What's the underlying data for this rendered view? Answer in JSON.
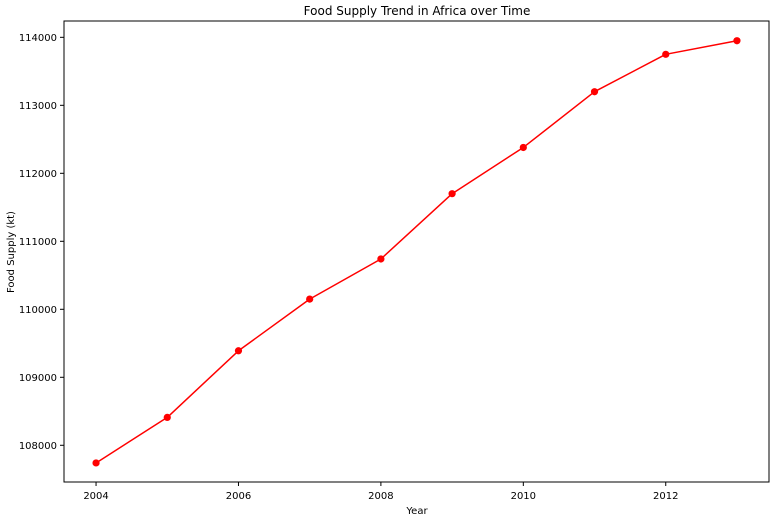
{
  "chart_data": {
    "type": "line",
    "title": "Food Supply Trend in Africa over Time",
    "xlabel": "Year",
    "ylabel": "Food Supply (kt)",
    "x": [
      2004,
      2005,
      2006,
      2007,
      2008,
      2009,
      2010,
      2011,
      2012,
      2013
    ],
    "series": [
      {
        "values": [
          107740,
          108410,
          109390,
          110150,
          110740,
          111700,
          112380,
          113200,
          113750,
          113950
        ]
      }
    ],
    "xlim": [
      2003.55,
      2013.45
    ],
    "ylim": [
      107460,
      114240
    ],
    "xticks": [
      2004,
      2006,
      2008,
      2010,
      2012
    ],
    "yticks": [
      108000,
      109000,
      110000,
      111000,
      112000,
      113000,
      114000
    ],
    "grid": false,
    "line_color": "#ff0000",
    "marker": "circle",
    "frame_color": "#000000"
  }
}
